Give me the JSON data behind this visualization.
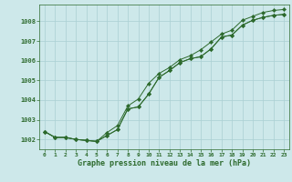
{
  "x": [
    0,
    1,
    2,
    3,
    4,
    5,
    6,
    7,
    8,
    9,
    10,
    11,
    12,
    13,
    14,
    15,
    16,
    17,
    18,
    19,
    20,
    21,
    22,
    23
  ],
  "line1": [
    1002.4,
    1002.1,
    1002.1,
    1002.0,
    1001.95,
    1001.9,
    1002.2,
    1002.5,
    1003.55,
    1003.65,
    1004.3,
    1005.15,
    1005.5,
    1005.9,
    1006.1,
    1006.2,
    1006.6,
    1007.2,
    1007.3,
    1007.8,
    1008.05,
    1008.2,
    1008.3,
    1008.35
  ],
  "line2": [
    1002.4,
    1002.1,
    1002.1,
    1002.0,
    1001.95,
    1001.9,
    1002.35,
    1002.7,
    1003.7,
    1004.05,
    1004.85,
    1005.35,
    1005.65,
    1006.05,
    1006.25,
    1006.55,
    1006.95,
    1007.35,
    1007.55,
    1008.05,
    1008.25,
    1008.45,
    1008.55,
    1008.6
  ],
  "line3": [
    1002.4,
    1002.1,
    1002.1,
    1002.0,
    1001.95,
    1001.9,
    1002.2,
    1002.5,
    1003.55,
    1003.65,
    1004.3,
    1005.15,
    1005.5,
    1005.9,
    1006.1,
    1006.2,
    1006.6,
    1007.2,
    1007.3,
    1007.8,
    1008.05,
    1008.2,
    1008.3,
    1008.35
  ],
  "xlabel": "Graphe pression niveau de la mer (hPa)",
  "yticks": [
    1002,
    1003,
    1004,
    1005,
    1006,
    1007,
    1008
  ],
  "xticks": [
    0,
    1,
    2,
    3,
    4,
    5,
    6,
    7,
    8,
    9,
    10,
    11,
    12,
    13,
    14,
    15,
    16,
    17,
    18,
    19,
    20,
    21,
    22,
    23
  ],
  "ylim": [
    1001.5,
    1008.85
  ],
  "xlim": [
    -0.5,
    23.5
  ],
  "line_color": "#2d6a2d",
  "bg_color": "#cde8ea",
  "grid_color": "#aacfd2",
  "marker": "D",
  "marker_size": 2.2,
  "linewidth": 0.7
}
